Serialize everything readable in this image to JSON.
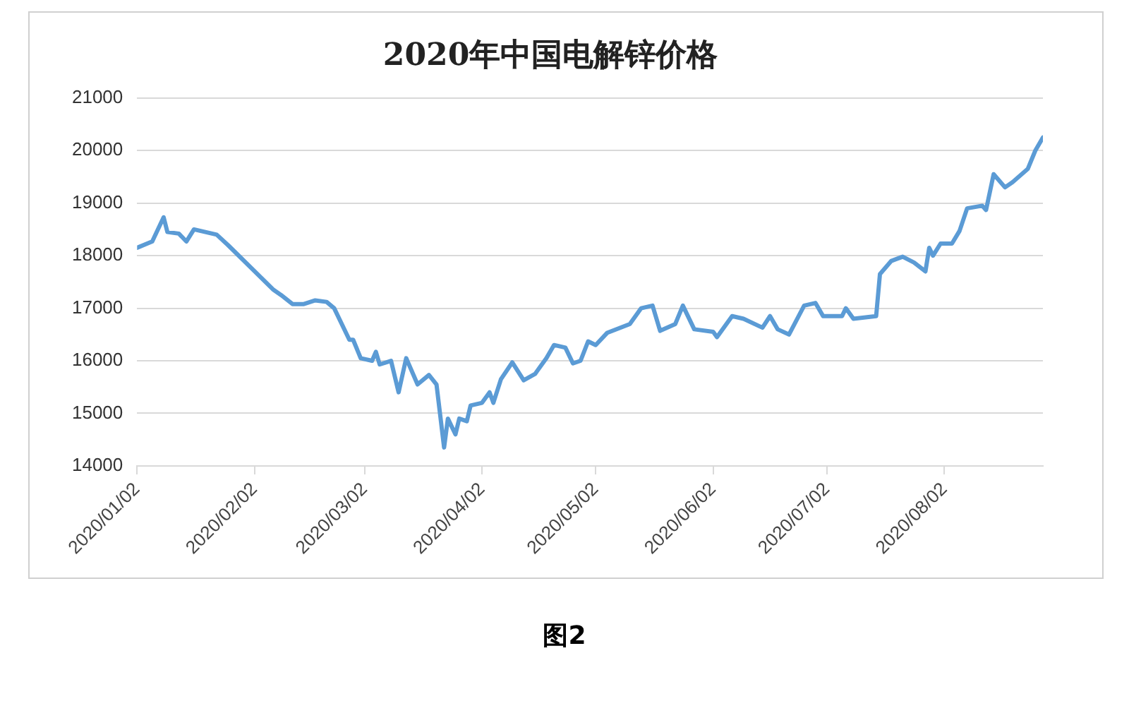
{
  "chart_data": {
    "type": "line",
    "title": "2020年中国电解锌价格",
    "annotations": [
      "图2"
    ],
    "x": [
      "2020-01-02",
      "2020-01-06",
      "2020-01-09",
      "2020-01-10",
      "2020-01-13",
      "2020-01-15",
      "2020-01-17",
      "2020-01-23",
      "2020-01-26",
      "2020-02-07",
      "2020-02-09",
      "2020-02-12",
      "2020-02-15",
      "2020-02-18",
      "2020-02-21",
      "2020-02-23",
      "2020-02-27",
      "2020-02-28",
      "2020-03-01",
      "2020-03-04",
      "2020-03-05",
      "2020-03-06",
      "2020-03-09",
      "2020-03-11",
      "2020-03-13",
      "2020-03-16",
      "2020-03-19",
      "2020-03-21",
      "2020-03-23",
      "2020-03-24",
      "2020-03-25",
      "2020-03-26",
      "2020-03-27",
      "2020-03-29",
      "2020-03-30",
      "2020-04-02",
      "2020-04-04",
      "2020-04-05",
      "2020-04-07",
      "2020-04-10",
      "2020-04-13",
      "2020-04-16",
      "2020-04-19",
      "2020-04-21",
      "2020-04-24",
      "2020-04-26",
      "2020-04-28",
      "2020-04-30",
      "2020-05-02",
      "2020-05-05",
      "2020-05-11",
      "2020-05-14",
      "2020-05-17",
      "2020-05-19",
      "2020-05-23",
      "2020-05-25",
      "2020-05-28",
      "2020-06-02",
      "2020-06-03",
      "2020-06-07",
      "2020-06-10",
      "2020-06-15",
      "2020-06-17",
      "2020-06-19",
      "2020-06-22",
      "2020-06-26",
      "2020-06-29",
      "2020-07-01",
      "2020-07-06",
      "2020-07-07",
      "2020-07-09",
      "2020-07-15",
      "2020-07-16",
      "2020-07-19",
      "2020-07-22",
      "2020-07-25",
      "2020-07-28",
      "2020-07-29",
      "2020-07-30",
      "2020-08-01",
      "2020-08-04",
      "2020-08-06",
      "2020-08-08",
      "2020-08-12",
      "2020-08-13",
      "2020-08-15",
      "2020-08-18",
      "2020-08-20",
      "2020-08-24",
      "2020-08-26",
      "2020-08-28"
    ],
    "series": [
      {
        "color": "#5b9bd5",
        "values": [
          18150,
          18270,
          18730,
          18450,
          18420,
          18270,
          18500,
          18400,
          18200,
          17350,
          17250,
          17080,
          17080,
          17150,
          17120,
          17000,
          16400,
          16400,
          16050,
          16000,
          16170,
          15930,
          16000,
          15400,
          16050,
          15550,
          15730,
          15550,
          14350,
          14900,
          14750,
          14600,
          14900,
          14850,
          15150,
          15200,
          15400,
          15200,
          15650,
          15970,
          15630,
          15750,
          16050,
          16300,
          16250,
          15950,
          16000,
          16370,
          16300,
          16530,
          16700,
          17000,
          17050,
          16570,
          16700,
          17050,
          16600,
          16550,
          16450,
          16850,
          16800,
          16630,
          16850,
          16600,
          16500,
          17050,
          17100,
          16850,
          16850,
          17000,
          16800,
          16850,
          17650,
          17900,
          17980,
          17870,
          17700,
          18150,
          18000,
          18230,
          18230,
          18470,
          18900,
          18950,
          18870,
          19550,
          19300,
          19400,
          19650,
          20000,
          20250
        ]
      }
    ],
    "xlim": [
      "2020-01-02",
      "2020-08-28"
    ],
    "xticks": [
      {
        "value": "2020-01-02",
        "label": "2020/01/02"
      },
      {
        "value": "2020-02-02",
        "label": "2020/02/02"
      },
      {
        "value": "2020-03-02",
        "label": "2020/03/02"
      },
      {
        "value": "2020-04-02",
        "label": "2020/04/02"
      },
      {
        "value": "2020-05-02",
        "label": "2020/05/02"
      },
      {
        "value": "2020-06-02",
        "label": "2020/06/02"
      },
      {
        "value": "2020-07-02",
        "label": "2020/07/02"
      },
      {
        "value": "2020-08-02",
        "label": "2020/08/02"
      }
    ],
    "ylim": [
      14000,
      21000
    ],
    "yticks": [
      14000,
      15000,
      16000,
      17000,
      18000,
      19000,
      20000,
      21000
    ],
    "grid": "y",
    "legend": false,
    "marker": "none",
    "line_style": "solid"
  }
}
